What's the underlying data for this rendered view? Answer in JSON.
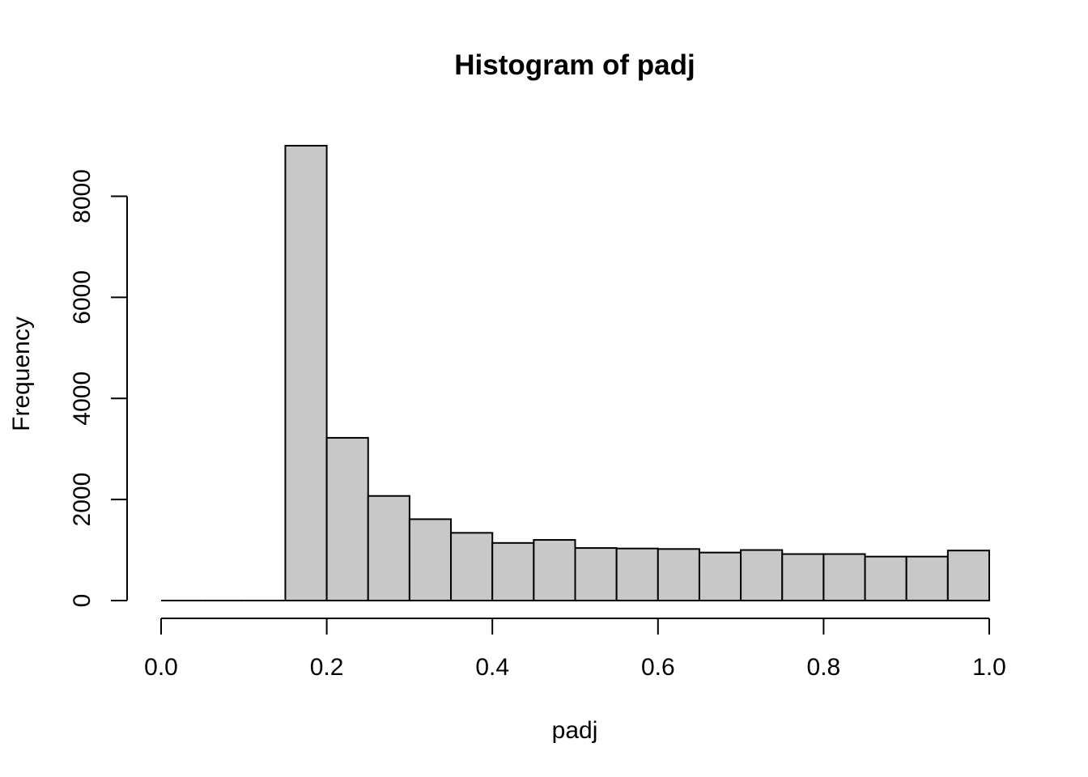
{
  "chart_data": {
    "type": "bar",
    "title": "Histogram of padj",
    "xlabel": "padj",
    "ylabel": "Frequency",
    "bin_width": 0.05,
    "bin_edges": [
      0.0,
      0.05,
      0.1,
      0.15,
      0.2,
      0.25,
      0.3,
      0.35,
      0.4,
      0.45,
      0.5,
      0.55,
      0.6,
      0.65,
      0.7,
      0.75,
      0.8,
      0.85,
      0.9,
      0.95,
      1.0
    ],
    "values": [
      0,
      0,
      0,
      9000,
      3220,
      2070,
      1610,
      1340,
      1140,
      1200,
      1040,
      1030,
      1020,
      950,
      1000,
      920,
      920,
      870,
      870,
      990
    ],
    "xlim": [
      0.0,
      1.0
    ],
    "ylim": [
      0,
      9000
    ],
    "x_ticks": [
      0.0,
      0.2,
      0.4,
      0.6,
      0.8,
      1.0
    ],
    "x_tick_labels": [
      "0.0",
      "0.2",
      "0.4",
      "0.6",
      "0.8",
      "1.0"
    ],
    "y_ticks": [
      0,
      2000,
      4000,
      6000,
      8000
    ],
    "y_tick_labels": [
      "0",
      "2000",
      "4000",
      "6000",
      "8000"
    ],
    "bar_fill": "#c8c8c8",
    "bar_stroke": "#000000",
    "grid": false,
    "legend": "none"
  }
}
